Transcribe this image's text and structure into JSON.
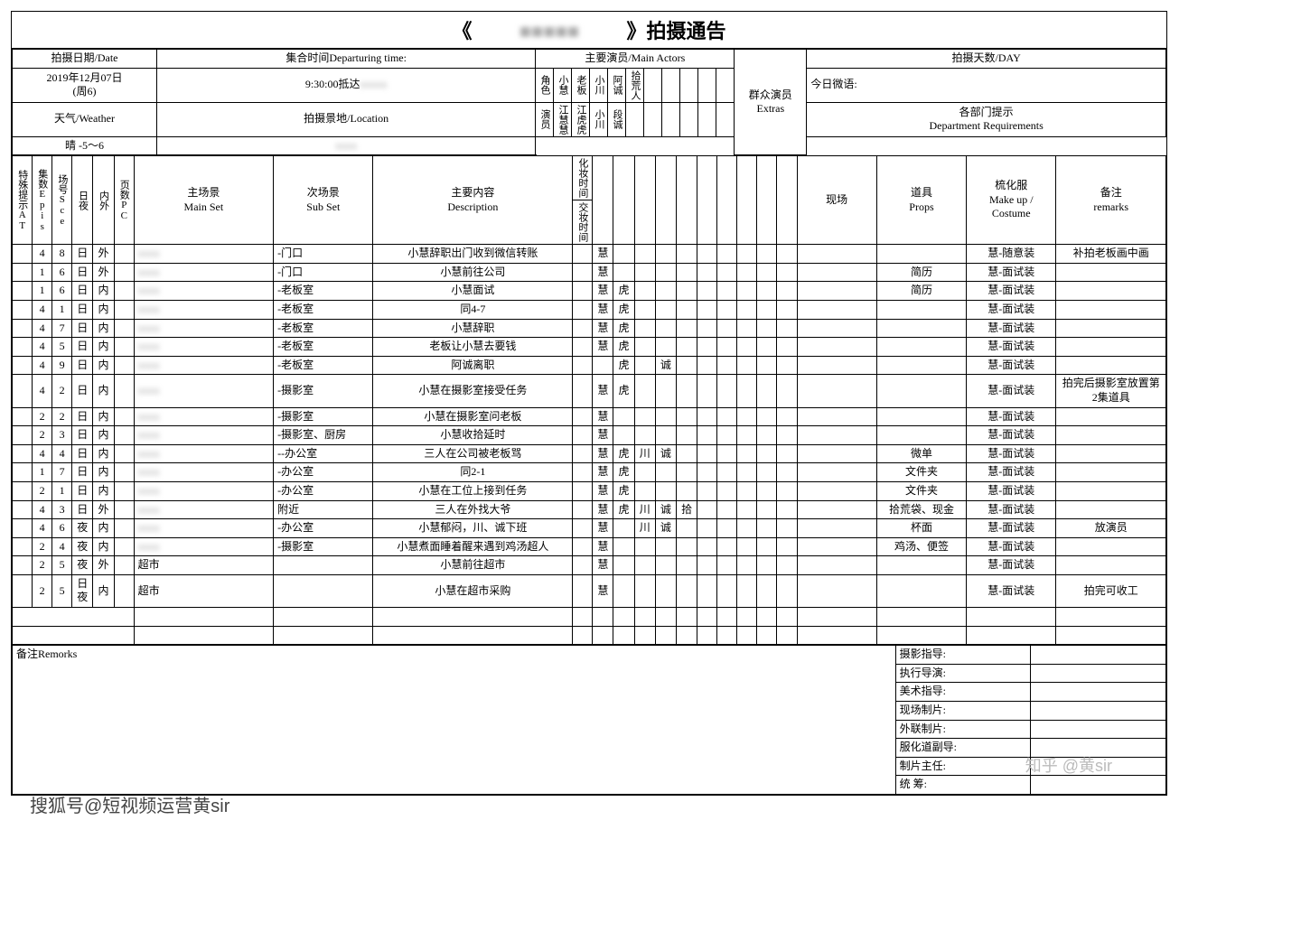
{
  "title_prefix": "《",
  "title_hidden": "■■■■■",
  "title_suffix": "》拍摄通告",
  "header": {
    "date_label": "拍摄日期/Date",
    "date_value": "2019年12月07日",
    "date_sub": "(周6)",
    "weather_label": "天气/Weather",
    "weather_value": "晴 -5～6",
    "departure_label": "集合时间Departuring time:",
    "departure_value_prefix": "9:30:00抵达",
    "departure_blur": "xxxxx",
    "location_label": "拍摄景地/Location",
    "location_blur": "xxxx",
    "actors_label": "主要演员/Main Actors",
    "role_label": "角色",
    "actor_label": "演员",
    "chars": [
      "小慧",
      "老板",
      "小川",
      "阿诚",
      "拾荒人"
    ],
    "actors": [
      "江慧慧",
      "江虎虎",
      "小川",
      "段诚",
      ""
    ],
    "extras_label": "群众演员",
    "extras_sub": "Extras",
    "onsite_label": "现场",
    "days_label": "拍摄天数/DAY",
    "weibo_label": "今日微语:",
    "dept_label_cn": "各部门提示",
    "dept_label_en": "Department Requirements",
    "makeup_time": "化妆时间",
    "release_time": "交妆时间"
  },
  "cols": {
    "at": "特殊提示AT",
    "epis": "集数Epis",
    "sce": "场号Sce",
    "daynight": "日夜",
    "inout": "内外",
    "pc": "页数PC",
    "mainset": "主场景",
    "mainset_en": "Main Set",
    "subset": "次场景",
    "subset_en": "Sub Set",
    "desc": "主要内容",
    "desc_en": "Description",
    "props": "道具",
    "props_en": "Props",
    "makeup": "梳化服",
    "makeup_en": "Make up / Costume",
    "remarks": "备注",
    "remarks_en": "remarks"
  },
  "rows": [
    {
      "ep": "4",
      "sc": "8",
      "dn": "日",
      "io": "外",
      "sub": "-门口",
      "desc": "小慧辞职出门收到微信转账",
      "a": [
        "慧",
        "",
        "",
        "",
        ""
      ],
      "props": "",
      "costume": "慧-随意装",
      "rem": "补拍老板画中画"
    },
    {
      "ep": "1",
      "sc": "6",
      "dn": "日",
      "io": "外",
      "sub": "-门口",
      "desc": "小慧前往公司",
      "a": [
        "慧",
        "",
        "",
        "",
        ""
      ],
      "props": "简历",
      "costume": "慧-面试装",
      "rem": ""
    },
    {
      "ep": "1",
      "sc": "6",
      "dn": "日",
      "io": "内",
      "sub": "-老板室",
      "desc": "小慧面试",
      "a": [
        "慧",
        "虎",
        "",
        "",
        ""
      ],
      "props": "简历",
      "costume": "慧-面试装",
      "rem": ""
    },
    {
      "ep": "4",
      "sc": "1",
      "dn": "日",
      "io": "内",
      "sub": "-老板室",
      "desc": "同4-7",
      "a": [
        "慧",
        "虎",
        "",
        "",
        ""
      ],
      "props": "",
      "costume": "慧-面试装",
      "rem": ""
    },
    {
      "ep": "4",
      "sc": "7",
      "dn": "日",
      "io": "内",
      "sub": "-老板室",
      "desc": "小慧辞职",
      "a": [
        "慧",
        "虎",
        "",
        "",
        ""
      ],
      "props": "",
      "costume": "慧-面试装",
      "rem": ""
    },
    {
      "ep": "4",
      "sc": "5",
      "dn": "日",
      "io": "内",
      "sub": "-老板室",
      "desc": "老板让小慧去要钱",
      "a": [
        "慧",
        "虎",
        "",
        "",
        ""
      ],
      "props": "",
      "costume": "慧-面试装",
      "rem": ""
    },
    {
      "ep": "4",
      "sc": "9",
      "dn": "日",
      "io": "内",
      "sub": "-老板室",
      "desc": "阿诚离职",
      "a": [
        "",
        "虎",
        "",
        "诚",
        ""
      ],
      "props": "",
      "costume": "慧-面试装",
      "rem": ""
    },
    {
      "ep": "4",
      "sc": "2",
      "dn": "日",
      "io": "内",
      "sub": "-摄影室",
      "desc": "小慧在摄影室接受任务",
      "a": [
        "慧",
        "虎",
        "",
        "",
        ""
      ],
      "props": "",
      "costume": "慧-面试装",
      "rem": "拍完后摄影室放置第2集道具"
    },
    {
      "ep": "2",
      "sc": "2",
      "dn": "日",
      "io": "内",
      "sub": "-摄影室",
      "desc": "小慧在摄影室问老板",
      "a": [
        "慧",
        "",
        "",
        "",
        ""
      ],
      "props": "",
      "costume": "慧-面试装",
      "rem": ""
    },
    {
      "ep": "2",
      "sc": "3",
      "dn": "日",
      "io": "内",
      "sub": "-摄影室、厨房",
      "desc": "小慧收拾延时",
      "a": [
        "慧",
        "",
        "",
        "",
        ""
      ],
      "props": "",
      "costume": "慧-面试装",
      "rem": ""
    },
    {
      "ep": "4",
      "sc": "4",
      "dn": "日",
      "io": "内",
      "sub": "--办公室",
      "desc": "三人在公司被老板骂",
      "a": [
        "慧",
        "虎",
        "川",
        "诚",
        ""
      ],
      "props": "微单",
      "costume": "慧-面试装",
      "rem": ""
    },
    {
      "ep": "1",
      "sc": "7",
      "dn": "日",
      "io": "内",
      "sub": "-办公室",
      "desc": "同2-1",
      "a": [
        "慧",
        "虎",
        "",
        "",
        ""
      ],
      "props": "文件夹",
      "costume": "慧-面试装",
      "rem": ""
    },
    {
      "ep": "2",
      "sc": "1",
      "dn": "日",
      "io": "内",
      "sub": "-办公室",
      "desc": "小慧在工位上接到任务",
      "a": [
        "慧",
        "虎",
        "",
        "",
        ""
      ],
      "props": "文件夹",
      "costume": "慧-面试装",
      "rem": ""
    },
    {
      "ep": "4",
      "sc": "3",
      "dn": "日",
      "io": "外",
      "sub": "附近",
      "desc": "三人在外找大爷",
      "a": [
        "慧",
        "虎",
        "川",
        "诚",
        "拾"
      ],
      "props": "拾荒袋、现金",
      "costume": "慧-面试装",
      "rem": ""
    },
    {
      "ep": "4",
      "sc": "6",
      "dn": "夜",
      "io": "内",
      "sub": "-办公室",
      "desc": "小慧郁闷，川、诚下班",
      "a": [
        "慧",
        "",
        "川",
        "诚",
        ""
      ],
      "props": "杯面",
      "costume": "慧-面试装",
      "rem": "放演员"
    },
    {
      "ep": "2",
      "sc": "4",
      "dn": "夜",
      "io": "内",
      "sub": "-摄影室",
      "desc": "小慧煮面睡着醒来遇到鸡汤超人",
      "a": [
        "慧",
        "",
        "",
        "",
        ""
      ],
      "props": "鸡汤、便签",
      "costume": "慧-面试装",
      "rem": ""
    },
    {
      "ep": "2",
      "sc": "5",
      "dn": "夜",
      "io": "外",
      "sub": "",
      "ms": "超市",
      "desc": "小慧前往超市",
      "a": [
        "慧",
        "",
        "",
        "",
        ""
      ],
      "props": "",
      "costume": "慧-面试装",
      "rem": ""
    },
    {
      "ep": "2",
      "sc": "5",
      "dn": "日夜",
      "io": "内",
      "sub": "",
      "ms": "超市",
      "desc": "小慧在超市采购",
      "a": [
        "慧",
        "",
        "",
        "",
        ""
      ],
      "props": "",
      "costume": "慧-面试装",
      "rem": "拍完可收工"
    }
  ],
  "footer": {
    "remarks_label": "备注Remorks",
    "credits": [
      "摄影指导:",
      "执行导演:",
      "美术指导:",
      "现场制片:",
      "外联制片:",
      "服化道副导:",
      "制片主任:",
      "统      筹:"
    ]
  },
  "wm_left": "搜狐号@短视频运营黄sir",
  "wm_right": "知乎 @黄sir"
}
